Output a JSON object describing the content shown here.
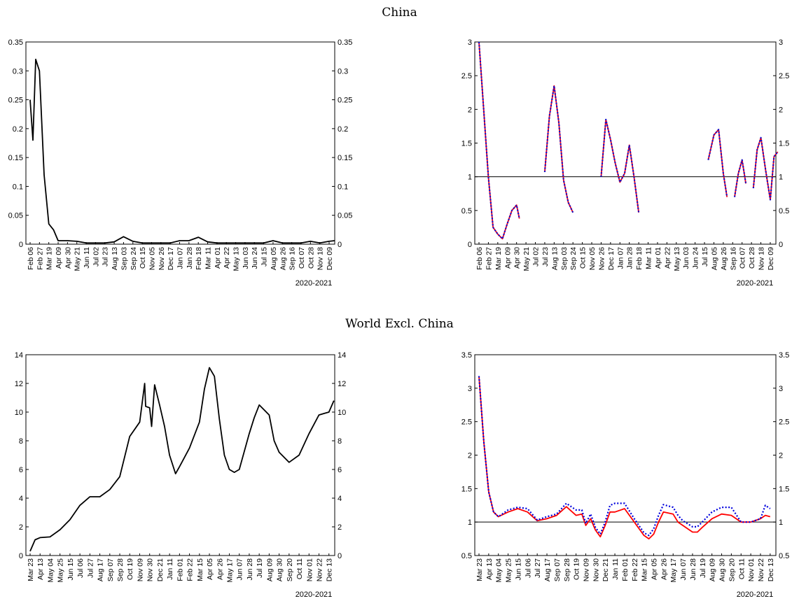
{
  "sections": [
    {
      "title": "China"
    },
    {
      "title": "World Excl. China"
    }
  ],
  "chart_data": [
    {
      "type": "line",
      "panel": "china-left",
      "xlabel": "2020-2021",
      "ylim": [
        0,
        0.35
      ],
      "yticks": [
        "0",
        "0.05",
        "0.1",
        "0.15",
        "0.2",
        "0.25",
        "0.3",
        "0.35"
      ],
      "ytick_values": [
        0,
        0.05,
        0.1,
        0.15,
        0.2,
        0.25,
        0.3,
        0.35
      ],
      "categories": [
        "Feb 06",
        "Feb 27",
        "Mar 19",
        "Apr 09",
        "Apr 30",
        "May 21",
        "Jun 11",
        "Jul 02",
        "Jul 23",
        "Aug 13",
        "Sep 03",
        "Sep 24",
        "Oct 15",
        "Nov 05",
        "Nov 26",
        "Dec 17",
        "Jan 07",
        "Jan 28",
        "Feb 18",
        "Mar 11",
        "Apr 01",
        "Apr 22",
        "May 13",
        "Jun 03",
        "Jun 24",
        "Jul 15",
        "Aug 05",
        "Aug 26",
        "Sep 16",
        "Oct 07",
        "Oct 28",
        "Nov 18",
        "Dec 09"
      ],
      "series": [
        {
          "color": "#000000",
          "style": "solid",
          "x": [
            0,
            0.3,
            0.6,
            1,
            1.5,
            2,
            2.5,
            3,
            4,
            5,
            6,
            7,
            8,
            9,
            10,
            11,
            12,
            13,
            14,
            15,
            16,
            17,
            18,
            19,
            20,
            21,
            22,
            23,
            24,
            25,
            26,
            27,
            28,
            29,
            30,
            31,
            32,
            32.6
          ],
          "values": [
            0.25,
            0.18,
            0.32,
            0.3,
            0.12,
            0.035,
            0.025,
            0.006,
            0.006,
            0.005,
            0.002,
            0.002,
            0.002,
            0.004,
            0.013,
            0.005,
            0.002,
            0.002,
            0.002,
            0.002,
            0.006,
            0.006,
            0.012,
            0.004,
            0.002,
            0.002,
            0.002,
            0.002,
            0.002,
            0.002,
            0.006,
            0.002,
            0.002,
            0.002,
            0.005,
            0.002,
            0.005,
            0.006
          ]
        }
      ]
    },
    {
      "type": "line",
      "panel": "china-right",
      "xlabel": "2020-2021",
      "ylim": [
        0,
        3
      ],
      "yticks": [
        "0",
        "0.5",
        "1",
        "1.5",
        "2",
        "2.5",
        "3"
      ],
      "ytick_values": [
        0,
        0.5,
        1,
        1.5,
        2,
        2.5,
        3
      ],
      "reference_line": 1,
      "categories": [
        "Feb 06",
        "Feb 27",
        "Mar 19",
        "Apr 09",
        "Apr 30",
        "May 21",
        "Jul 02",
        "Jul 23",
        "Aug 13",
        "Sep 03",
        "Sep 24",
        "Oct 15",
        "Nov 05",
        "Nov 26",
        "Dec 17",
        "Jan 07",
        "Jan 28",
        "Feb 18",
        "Mar 11",
        "Apr 01",
        "Apr 22",
        "May 13",
        "Jun 03",
        "Jun 24",
        "Jul 15",
        "Aug 05",
        "Aug 26",
        "Sep 16",
        "Oct 07",
        "Oct 28",
        "Nov 18",
        "Dec 09"
      ],
      "series": [
        {
          "color": "#e8001c",
          "style": "solid",
          "segments": [
            {
              "x": [
                0,
                0.5,
                1,
                1.5,
                2,
                2.5,
                3,
                3.5,
                4,
                4.3
              ],
              "values": [
                3,
                2.0,
                1.0,
                0.25,
                0.15,
                0.08,
                0.3,
                0.5,
                0.58,
                0.38
              ]
            },
            {
              "x": [
                7,
                7.5,
                8,
                8.5,
                9,
                9.5,
                10
              ],
              "values": [
                1.07,
                1.9,
                2.35,
                1.8,
                0.95,
                0.62,
                0.47
              ]
            },
            {
              "x": [
                13,
                13.5,
                14,
                14.5,
                15,
                15.5,
                16,
                16.5,
                17
              ],
              "values": [
                1.0,
                1.85,
                1.55,
                1.2,
                0.92,
                1.05,
                1.47,
                1.0,
                0.47
              ]
            },
            {
              "x": [
                24.4,
                25,
                25.5,
                26,
                26.4
              ],
              "values": [
                1.25,
                1.62,
                1.7,
                1.05,
                0.7
              ]
            },
            {
              "x": [
                27.2,
                27.6,
                28,
                28.4
              ],
              "values": [
                0.7,
                1.05,
                1.25,
                0.9
              ]
            },
            {
              "x": [
                29.2,
                29.6,
                30,
                30.5,
                31,
                31.4,
                31.8
              ],
              "values": [
                0.83,
                1.4,
                1.58,
                1.1,
                0.66,
                1.3,
                1.37
              ]
            }
          ]
        },
        {
          "color": "#1010cc",
          "style": "dotted",
          "segments": [
            {
              "x": [
                0,
                0.5,
                1,
                1.5,
                2,
                2.5,
                3,
                3.5,
                4,
                4.3
              ],
              "values": [
                3,
                2.0,
                1.0,
                0.25,
                0.15,
                0.08,
                0.3,
                0.5,
                0.58,
                0.38
              ]
            },
            {
              "x": [
                7,
                7.5,
                8,
                8.5,
                9,
                9.5,
                10
              ],
              "values": [
                1.07,
                1.9,
                2.35,
                1.8,
                0.95,
                0.62,
                0.47
              ]
            },
            {
              "x": [
                13,
                13.5,
                14,
                14.5,
                15,
                15.5,
                16,
                16.5,
                17
              ],
              "values": [
                1.0,
                1.85,
                1.55,
                1.2,
                0.92,
                1.05,
                1.47,
                1.0,
                0.47
              ]
            },
            {
              "x": [
                24.4,
                25,
                25.5,
                26,
                26.4
              ],
              "values": [
                1.25,
                1.62,
                1.7,
                1.05,
                0.7
              ]
            },
            {
              "x": [
                27.2,
                27.6,
                28,
                28.4
              ],
              "values": [
                0.7,
                1.05,
                1.25,
                0.9
              ]
            },
            {
              "x": [
                29.2,
                29.6,
                30,
                30.5,
                31,
                31.4,
                31.8
              ],
              "values": [
                0.83,
                1.4,
                1.58,
                1.1,
                0.66,
                1.3,
                1.37
              ]
            }
          ]
        }
      ]
    },
    {
      "type": "line",
      "panel": "world-left",
      "xlabel": "2020-2021",
      "ylim": [
        0,
        14
      ],
      "yticks": [
        "0",
        "2",
        "4",
        "6",
        "8",
        "10",
        "12",
        "14"
      ],
      "ytick_values": [
        0,
        2,
        4,
        6,
        8,
        10,
        12,
        14
      ],
      "categories": [
        "Mar 23",
        "Apr 13",
        "May 04",
        "May 25",
        "Jun 15",
        "Jul 06",
        "Jul 27",
        "Aug 17",
        "Sep 07",
        "Sep 28",
        "Oct 19",
        "Nov 09",
        "Nov 30",
        "Dec 21",
        "Jan 11",
        "Feb 01",
        "Feb 22",
        "Mar 15",
        "Apr 05",
        "Apr 26",
        "May 17",
        "Jun 07",
        "Jun 28",
        "Jul 19",
        "Aug 09",
        "Aug 30",
        "Sep 20",
        "Oct 11",
        "Nov 01",
        "Nov 22",
        "Dec 13"
      ],
      "series": [
        {
          "color": "#000000",
          "style": "solid",
          "x": [
            0,
            0.5,
            1,
            2,
            3,
            4,
            5,
            6,
            7,
            8,
            9,
            10,
            11,
            11.5,
            11.6,
            12,
            12.2,
            12.5,
            13,
            13.5,
            14,
            14.6,
            15,
            16,
            17,
            17.5,
            18,
            18.5,
            19,
            19.5,
            20,
            20.5,
            21,
            22,
            22.5,
            23,
            24,
            24.5,
            25,
            26,
            27,
            28,
            29,
            29.5,
            30,
            30.5
          ],
          "values": [
            0.3,
            1.1,
            1.25,
            1.3,
            1.8,
            2.5,
            3.5,
            4.1,
            4.1,
            4.6,
            5.5,
            8.3,
            9.3,
            12.0,
            10.4,
            10.3,
            9.0,
            11.9,
            10.5,
            9.0,
            7.0,
            5.7,
            6.2,
            7.5,
            9.3,
            11.6,
            13.1,
            12.5,
            9.5,
            7.0,
            6.0,
            5.8,
            6.0,
            8.5,
            9.6,
            10.5,
            9.8,
            8.0,
            7.2,
            6.5,
            7.0,
            8.5,
            9.8,
            9.9,
            10.0,
            10.8
          ]
        }
      ]
    },
    {
      "type": "line",
      "panel": "world-right",
      "xlabel": "2020-2021",
      "ylim": [
        0.5,
        3.5
      ],
      "yticks": [
        "0.5",
        "1",
        "1.5",
        "2",
        "2.5",
        "3",
        "3.5"
      ],
      "ytick_values": [
        0.5,
        1,
        1.5,
        2,
        2.5,
        3,
        3.5
      ],
      "reference_line": 1,
      "categories": [
        "Mar 23",
        "Apr 13",
        "May 04",
        "May 25",
        "Jun 15",
        "Jul 06",
        "Jul 27",
        "Aug 17",
        "Sep 07",
        "Sep 28",
        "Oct 19",
        "Nov 09",
        "Nov 30",
        "Dec 21",
        "Jan 11",
        "Feb 01",
        "Feb 22",
        "Mar 15",
        "Apr 05",
        "Apr 26",
        "May 17",
        "Jun 07",
        "Jun 28",
        "Jul 19",
        "Aug 09",
        "Aug 30",
        "Sep 20",
        "Oct 11",
        "Nov 01",
        "Nov 22",
        "Dec 13"
      ],
      "series": [
        {
          "color": "#ff0000",
          "style": "solid",
          "x": [
            0,
            0.5,
            1,
            1.5,
            2,
            3,
            4,
            5,
            6,
            7,
            8,
            9,
            10,
            10.6,
            11,
            11.5,
            12,
            12.5,
            13,
            13.5,
            14,
            15,
            16,
            17,
            17.5,
            18,
            18.5,
            19,
            20,
            20.5,
            21,
            22,
            22.5,
            23,
            24,
            25,
            26,
            27,
            28,
            29,
            29.5,
            30
          ],
          "values": [
            3.18,
            2.2,
            1.45,
            1.15,
            1.08,
            1.15,
            1.2,
            1.15,
            1.02,
            1.05,
            1.1,
            1.23,
            1.1,
            1.12,
            0.95,
            1.05,
            0.88,
            0.78,
            0.95,
            1.15,
            1.15,
            1.2,
            1.0,
            0.8,
            0.75,
            0.82,
            1.0,
            1.15,
            1.12,
            1.0,
            0.95,
            0.85,
            0.85,
            0.92,
            1.05,
            1.12,
            1.1,
            1.0,
            1.0,
            1.05,
            1.1,
            1.08
          ]
        },
        {
          "color": "#0000dd",
          "style": "dotted",
          "x": [
            0,
            0.5,
            1,
            1.5,
            2,
            3,
            4,
            5,
            6,
            7,
            8,
            9,
            10,
            10.6,
            11,
            11.5,
            12,
            12.5,
            13,
            13.5,
            14,
            15,
            16,
            17,
            17.5,
            18,
            18.5,
            19,
            20,
            20.5,
            21,
            22,
            22.5,
            23,
            24,
            25,
            26,
            27,
            28,
            29,
            29.5,
            30
          ],
          "values": [
            3.18,
            2.2,
            1.45,
            1.15,
            1.08,
            1.18,
            1.22,
            1.2,
            1.03,
            1.08,
            1.12,
            1.28,
            1.18,
            1.18,
            0.98,
            1.12,
            0.92,
            0.82,
            1.0,
            1.25,
            1.28,
            1.28,
            1.05,
            0.84,
            0.8,
            0.9,
            1.1,
            1.26,
            1.22,
            1.1,
            1.02,
            0.93,
            0.93,
            1.0,
            1.15,
            1.22,
            1.22,
            1.0,
            1.0,
            1.05,
            1.25,
            1.2
          ]
        }
      ]
    }
  ]
}
